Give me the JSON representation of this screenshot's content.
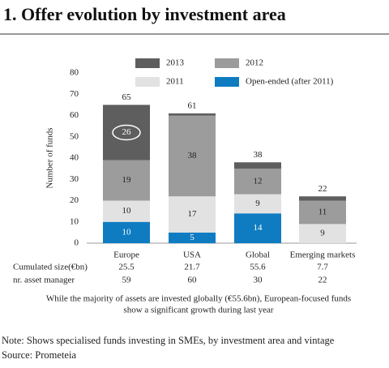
{
  "title": "1. Offer evolution by investment area",
  "chart_data": {
    "type": "stacked-bar",
    "y_label": "Number of funds",
    "categories": [
      "Europe",
      "USA",
      "Global",
      "Emerging markets"
    ],
    "series": [
      {
        "name": "Open-ended (after 2011)",
        "color": "#0f7cc1",
        "label_color": "#ffffff",
        "values": [
          10,
          5,
          14,
          0
        ],
        "value_labels": [
          "10",
          "5",
          "14",
          null
        ]
      },
      {
        "name": "2011",
        "color": "#e2e2e2",
        "label_color": "#222222",
        "values": [
          10,
          17,
          9,
          9
        ],
        "value_labels": [
          "10",
          "17",
          "9",
          "9"
        ]
      },
      {
        "name": "2012",
        "color": "#9c9c9c",
        "label_color": "#222222",
        "values": [
          19,
          38,
          12,
          11
        ],
        "value_labels": [
          "19",
          "38",
          "12",
          "11"
        ]
      },
      {
        "name": "2013",
        "color": "#5e5e5e",
        "label_color": "#ffffff",
        "values": [
          26,
          1,
          3,
          2
        ],
        "value_labels": [
          "26",
          null,
          null,
          null
        ]
      }
    ],
    "totals": [
      65,
      61,
      38,
      22
    ],
    "highlight": {
      "series": 3,
      "index": 0
    },
    "ylim": [
      0,
      80
    ],
    "yticks": [
      0,
      10,
      20,
      30,
      40,
      50,
      60,
      70,
      80
    ],
    "grid": false
  },
  "table": {
    "rows": [
      {
        "label": "Cumulated size(€bn)",
        "values": [
          25.5,
          21.7,
          55.6,
          7.7
        ]
      },
      {
        "label": "nr. asset manager",
        "values": [
          59,
          60,
          30,
          22
        ]
      }
    ]
  },
  "caption": [
    "While  the majority of assets are invested globally (€55.6bn), European-focused funds",
    "show a significant growth during last year"
  ],
  "note": "Note: Shows specialised funds  investing in SMEs, by investment area and vintage",
  "source": "Source: Prometeia"
}
